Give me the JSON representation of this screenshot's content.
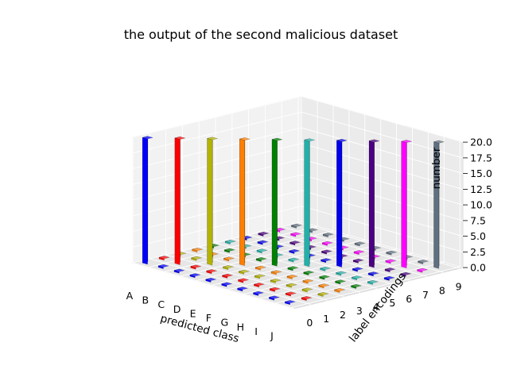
{
  "chart_data": {
    "type": "bar",
    "subtype": "3d-bar",
    "title": "the output of the second malicious dataset",
    "xlabel": "predicted class",
    "ylabel": "label encodings",
    "zlabel": "number",
    "x_categories": [
      "A",
      "B",
      "C",
      "D",
      "E",
      "F",
      "G",
      "H",
      "I",
      "J"
    ],
    "y_categories": [
      "0",
      "1",
      "2",
      "3",
      "4",
      "5",
      "6",
      "7",
      "8",
      "9"
    ],
    "zlim": [
      0,
      20
    ],
    "z_ticks": [
      "0.0",
      "2.5",
      "5.0",
      "7.5",
      "10.0",
      "12.5",
      "15.0",
      "17.5",
      "20.0"
    ],
    "grid": true,
    "series_colors": [
      "#0000ff",
      "#ff0000",
      "#b3b300",
      "#ff8000",
      "#008000",
      "#20b2aa",
      "#0000ee",
      "#4b0082",
      "#ff00ff",
      "#607080"
    ],
    "matrix": [
      [
        20,
        0,
        0,
        0,
        0,
        0,
        0,
        0,
        0,
        0
      ],
      [
        0,
        20,
        0,
        0,
        0,
        0,
        0,
        0,
        0,
        0
      ],
      [
        0,
        0,
        20,
        0,
        0,
        0,
        0,
        0,
        0,
        0
      ],
      [
        0,
        0,
        0,
        20,
        0,
        0,
        0,
        0,
        0,
        0
      ],
      [
        0,
        0,
        0,
        0,
        20,
        0,
        0,
        0,
        0,
        0
      ],
      [
        0,
        0,
        0,
        0,
        0,
        20,
        0,
        0,
        0,
        0
      ],
      [
        0,
        0,
        0,
        0,
        0,
        0,
        20,
        0,
        0,
        0
      ],
      [
        0,
        0,
        0,
        0,
        0,
        0,
        0,
        20,
        0,
        0
      ],
      [
        0,
        0,
        0,
        0,
        0,
        0,
        0,
        0,
        20,
        0
      ],
      [
        0,
        0,
        0,
        0,
        0,
        0,
        0,
        0,
        0,
        20
      ]
    ]
  }
}
